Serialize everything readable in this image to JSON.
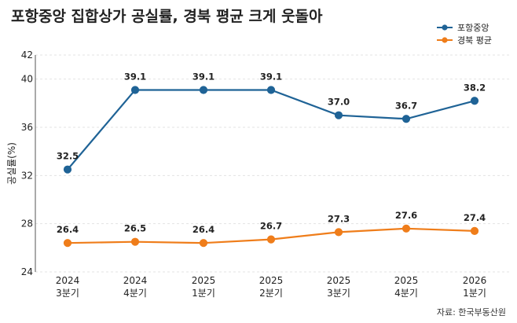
{
  "page": {
    "title": "포항중앙 집합상가 공실률, 경북 평균 크게 웃돌아",
    "source": "자료: 한국부동산원"
  },
  "colors": {
    "series1": "#1f6396",
    "series2": "#ef7d1a",
    "grid": "#e3e3e3",
    "axis": "#555555"
  },
  "chart_data": {
    "type": "line",
    "title": "포항중앙 집합상가 공실률, 경북 평균 크게 웃돌아",
    "ylabel": "공실률(%)",
    "xlabel": "",
    "categories": [
      [
        "2024",
        "3분기"
      ],
      [
        "2024",
        "4분기"
      ],
      [
        "2025",
        "1분기"
      ],
      [
        "2025",
        "2분기"
      ],
      [
        "2025",
        "3분기"
      ],
      [
        "2025",
        "4분기"
      ],
      [
        "2026",
        "1분기"
      ]
    ],
    "ylim": [
      24,
      42
    ],
    "yticks": [
      24,
      28,
      32,
      36,
      40,
      42
    ],
    "legend": "top-right",
    "grid": true,
    "series": [
      {
        "name": "포항중앙",
        "values": [
          32.5,
          39.1,
          39.1,
          39.1,
          37.0,
          36.7,
          38.2
        ],
        "labels": [
          "32.5",
          "39.1",
          "39.1",
          "39.1",
          "37.0",
          "36.7",
          "38.2"
        ]
      },
      {
        "name": "경북 평균",
        "values": [
          26.4,
          26.5,
          26.4,
          26.7,
          27.3,
          27.6,
          27.4
        ],
        "labels": [
          "26.4",
          "26.5",
          "26.4",
          "26.7",
          "27.3",
          "27.6",
          "27.4"
        ]
      }
    ]
  }
}
